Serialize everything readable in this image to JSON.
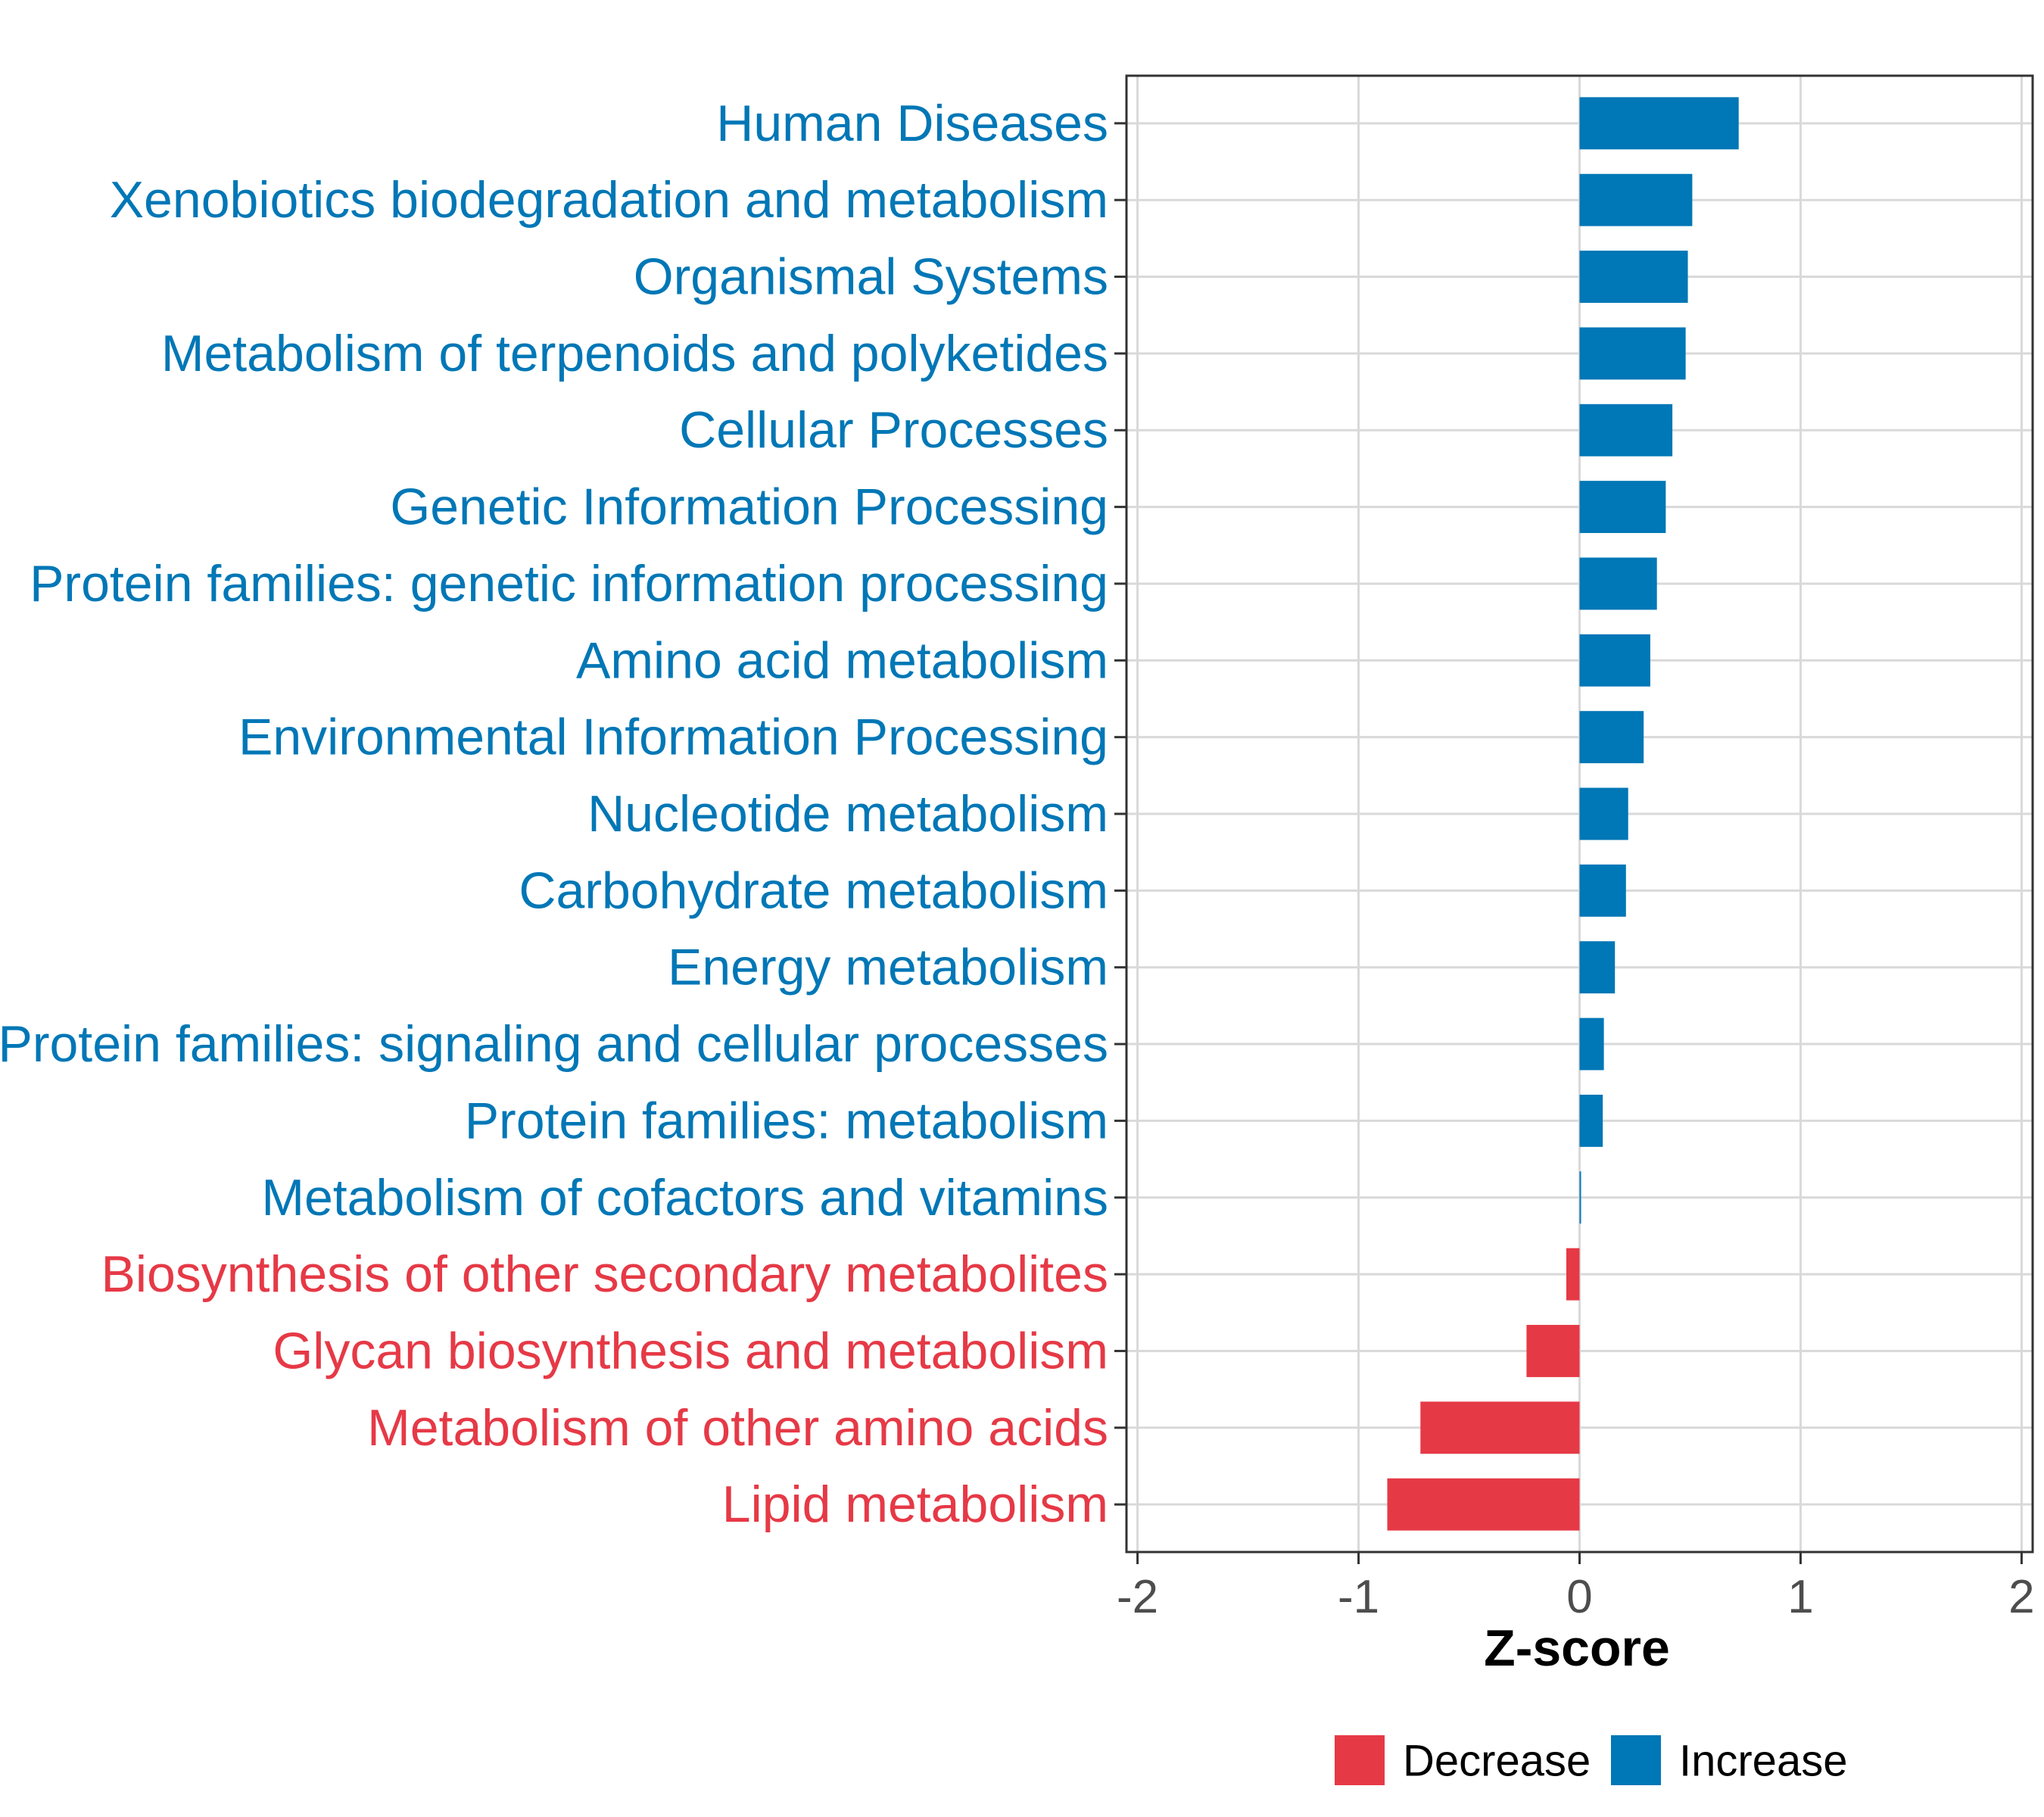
{
  "chart_data": {
    "type": "bar",
    "orientation": "horizontal",
    "categories": [
      "Human Diseases",
      "Xenobiotics biodegradation and metabolism",
      "Organismal Systems",
      "Metabolism of terpenoids and polyketides",
      "Cellular Processes",
      "Genetic Information Processing",
      "Protein families: genetic information processing",
      "Amino acid metabolism",
      "Environmental Information Processing",
      "Nucleotide metabolism",
      "Carbohydrate metabolism",
      "Energy metabolism",
      "Protein families: signaling and cellular processes",
      "Protein families: metabolism",
      "Metabolism of cofactors and vitamins",
      "Biosynthesis of other secondary metabolites",
      "Glycan biosynthesis and metabolism",
      "Metabolism of other amino acids",
      "Lipid metabolism"
    ],
    "values": [
      0.72,
      0.51,
      0.49,
      0.48,
      0.42,
      0.39,
      0.35,
      0.32,
      0.29,
      0.22,
      0.21,
      0.16,
      0.11,
      0.105,
      0.005,
      -0.06,
      -0.24,
      -0.72,
      -0.87
    ],
    "groups": [
      "Increase",
      "Increase",
      "Increase",
      "Increase",
      "Increase",
      "Increase",
      "Increase",
      "Increase",
      "Increase",
      "Increase",
      "Increase",
      "Increase",
      "Increase",
      "Increase",
      "Increase",
      "Decrease",
      "Decrease",
      "Decrease",
      "Decrease"
    ],
    "title": "",
    "xlabel": "Z-score",
    "ylabel": "",
    "xlim": [
      -2.05,
      2.05
    ],
    "xticks": [
      -2,
      -1,
      0,
      1,
      2
    ],
    "xtick_labels": [
      "-2",
      "-1",
      "0",
      "1",
      "2"
    ],
    "grid": true,
    "legend": {
      "position": "bottom",
      "entries": [
        {
          "label": "Decrease",
          "color": "#E63946"
        },
        {
          "label": "Increase",
          "color": "#0077B6"
        }
      ]
    }
  },
  "colors": {
    "increase": "#0077B6",
    "decrease": "#E63946",
    "grid": "#d9d9d9",
    "axis": "#333333"
  }
}
